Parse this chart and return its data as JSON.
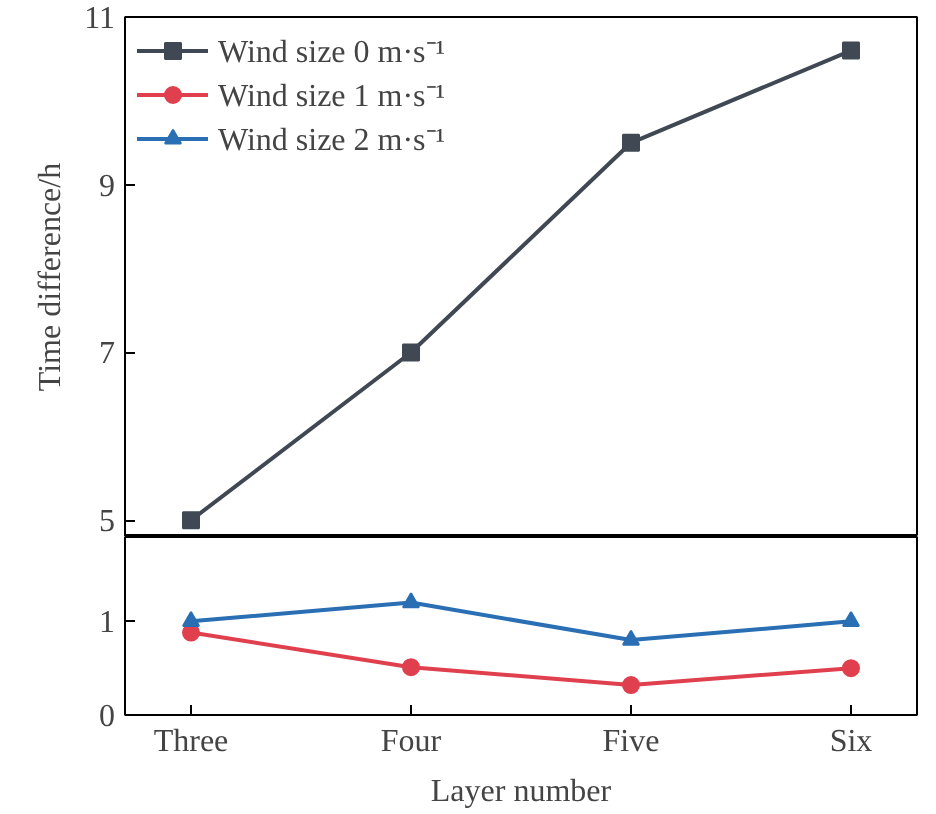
{
  "chart_data": [
    {
      "type": "line",
      "ylabel": "Time difference/h",
      "ylim": [
        4.8,
        11
      ],
      "yticks": [
        5,
        7,
        9,
        11
      ],
      "tick_labels": "y",
      "legend": "top left",
      "line_style": "solid",
      "grid": false,
      "series": [
        {
          "name": "Wind size 0 m·s⁻¹",
          "color": "#404853",
          "marker": "square",
          "values": [
            5.0,
            7.0,
            9.5,
            10.6
          ]
        },
        {
          "name": "Wind size 1 m·s⁻¹",
          "color": "#e0404e",
          "marker": "circle",
          "values": [
            null,
            null,
            null,
            null
          ]
        },
        {
          "name": "Wind size 2 m·s⁻¹",
          "color": "#2a6eb4",
          "marker": "triangle",
          "values": [
            null,
            null,
            null,
            null
          ]
        }
      ]
    },
    {
      "type": "line",
      "xlabel": "Layer number",
      "categories": [
        "Three",
        "Four",
        "Five",
        "Six"
      ],
      "ylim": [
        0,
        1.9
      ],
      "yticks": [
        0,
        1
      ],
      "legend": false,
      "line_style": "solid",
      "grid": false,
      "series": [
        {
          "color": "#404853",
          "marker": "square",
          "values": [
            null,
            null,
            null,
            null
          ]
        },
        {
          "color": "#e0404e",
          "marker": "circle",
          "values": [
            0.88,
            0.51,
            0.32,
            0.5
          ]
        },
        {
          "color": "#2a6eb4",
          "marker": "triangle",
          "values": [
            1.0,
            1.2,
            0.8,
            1.0
          ]
        }
      ]
    }
  ]
}
